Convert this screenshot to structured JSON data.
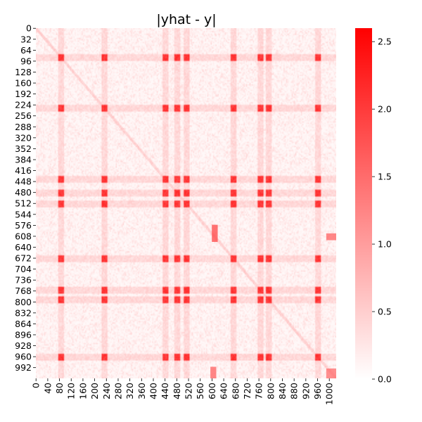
{
  "chart_data": {
    "type": "heatmap",
    "title": "|yhat - y|",
    "xlabel": "",
    "ylabel": "",
    "n_rows": 1024,
    "n_cols": 1024,
    "x_tick_labels": [
      "0",
      "40",
      "80",
      "120",
      "160",
      "200",
      "240",
      "280",
      "320",
      "360",
      "400",
      "440",
      "480",
      "520",
      "560",
      "600",
      "640",
      "680",
      "720",
      "760",
      "800",
      "840",
      "880",
      "920",
      "960",
      "1000"
    ],
    "y_tick_labels": [
      "0",
      "32",
      "64",
      "96",
      "128",
      "160",
      "192",
      "224",
      "256",
      "288",
      "320",
      "352",
      "384",
      "416",
      "448",
      "480",
      "512",
      "544",
      "576",
      "608",
      "640",
      "672",
      "704",
      "736",
      "768",
      "800",
      "832",
      "864",
      "896",
      "928",
      "960",
      "992"
    ],
    "colorbar": {
      "range": [
        0,
        2.6
      ],
      "ticks": [
        "0.0",
        "0.5",
        "1.0",
        "1.5",
        "2.0",
        "2.5"
      ],
      "colormap": [
        "#ffffff",
        "#ff0000"
      ]
    },
    "high_value_indices": [
      85,
      230,
      440,
      480,
      510,
      670,
      765,
      790,
      960
    ],
    "high_value_level": 2.2,
    "background_level_range": [
      0.05,
      0.45
    ],
    "diagonal_level": 0.5,
    "hotspot_blocks": [
      {
        "rows": [
          575,
          625
        ],
        "cols": [
          600,
          620
        ],
        "level": 1.9
      },
      {
        "rows": [
          990,
          1024
        ],
        "cols": [
          595,
          615
        ],
        "level": 1.6
      },
      {
        "rows": [
          600,
          620
        ],
        "cols": [
          990,
          1024
        ],
        "level": 1.6
      },
      {
        "rows": [
          995,
          1024
        ],
        "cols": [
          990,
          1024
        ],
        "level": 1.5
      }
    ]
  }
}
